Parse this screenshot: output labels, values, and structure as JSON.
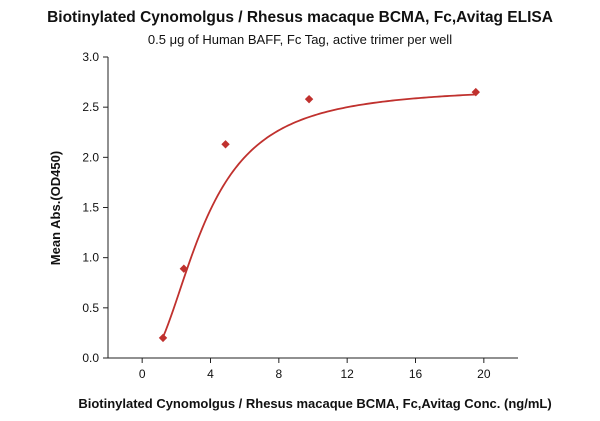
{
  "chart_data": {
    "type": "scatter",
    "title": "Biotinylated Cynomolgus / Rhesus macaque BCMA, Fc,Avitag ELISA",
    "subtitle": "0.5 μg of Human BAFF, Fc Tag, active trimer per well",
    "xlabel": "Biotinylated Cynomolgus / Rhesus macaque BCMA, Fc,Avitag Conc. (ng/mL)",
    "ylabel": "Mean Abs.(OD450)",
    "xlim": [
      -2,
      22
    ],
    "ylim": [
      0,
      3
    ],
    "xticks": [
      0,
      4,
      8,
      12,
      16,
      20
    ],
    "yticks": [
      0.0,
      0.5,
      1.0,
      1.5,
      2.0,
      2.5,
      3.0
    ],
    "xtick_labels": [
      "0",
      "4",
      "8",
      "12",
      "16",
      "20"
    ],
    "ytick_labels": [
      "0.0",
      "0.5",
      "1.0",
      "1.5",
      "2.0",
      "2.5",
      "3.0"
    ],
    "grid": false,
    "marker": "diamond",
    "color": "#c0312e",
    "series": [
      {
        "x": [
          1.22,
          2.44,
          4.88,
          9.77,
          19.53
        ],
        "y": [
          0.2,
          0.89,
          2.13,
          2.58,
          2.65
        ]
      }
    ]
  }
}
